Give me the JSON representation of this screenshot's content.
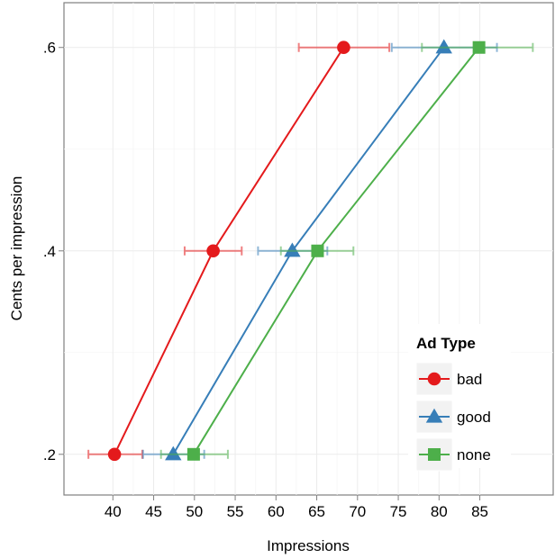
{
  "chart_data": {
    "type": "line",
    "title": "",
    "xlabel": "Impressions",
    "ylabel": "Cents per impression",
    "xlim": [
      34,
      94
    ],
    "ylim": [
      0.16,
      0.644
    ],
    "x_ticks": [
      40,
      45,
      50,
      55,
      60,
      65,
      70,
      75,
      80,
      85
    ],
    "x_tick_labels": [
      "40",
      "45",
      "50",
      "55",
      "60",
      "65",
      "70",
      "75",
      "80",
      "85"
    ],
    "y_ticks": [
      0.2,
      0.4,
      0.6
    ],
    "y_tick_labels": [
      ".2",
      ".4",
      ".6"
    ],
    "grid": true,
    "legend": {
      "title": "Ad Type",
      "placement": "bottom-right",
      "entries": [
        "bad",
        "good",
        "none"
      ]
    },
    "series": [
      {
        "name": "bad",
        "color": "#e41a1c",
        "marker": "circle",
        "points": [
          {
            "x": 40.2,
            "y": 0.2,
            "xmin": 37.0,
            "xmax": 43.6
          },
          {
            "x": 52.3,
            "y": 0.4,
            "xmin": 48.8,
            "xmax": 55.8
          },
          {
            "x": 68.3,
            "y": 0.6,
            "xmin": 62.8,
            "xmax": 73.9
          }
        ]
      },
      {
        "name": "good",
        "color": "#377eb8",
        "marker": "triangle",
        "points": [
          {
            "x": 47.4,
            "y": 0.2,
            "xmin": 43.7,
            "xmax": 51.2
          },
          {
            "x": 62.0,
            "y": 0.4,
            "xmin": 57.8,
            "xmax": 66.3
          },
          {
            "x": 80.6,
            "y": 0.6,
            "xmin": 74.2,
            "xmax": 87.1
          }
        ]
      },
      {
        "name": "none",
        "color": "#4daf4a",
        "marker": "square",
        "points": [
          {
            "x": 49.9,
            "y": 0.2,
            "xmin": 45.9,
            "xmax": 54.1
          },
          {
            "x": 65.1,
            "y": 0.4,
            "xmin": 60.6,
            "xmax": 69.5
          },
          {
            "x": 84.9,
            "y": 0.6,
            "xmin": 77.9,
            "xmax": 91.5
          }
        ]
      }
    ]
  }
}
